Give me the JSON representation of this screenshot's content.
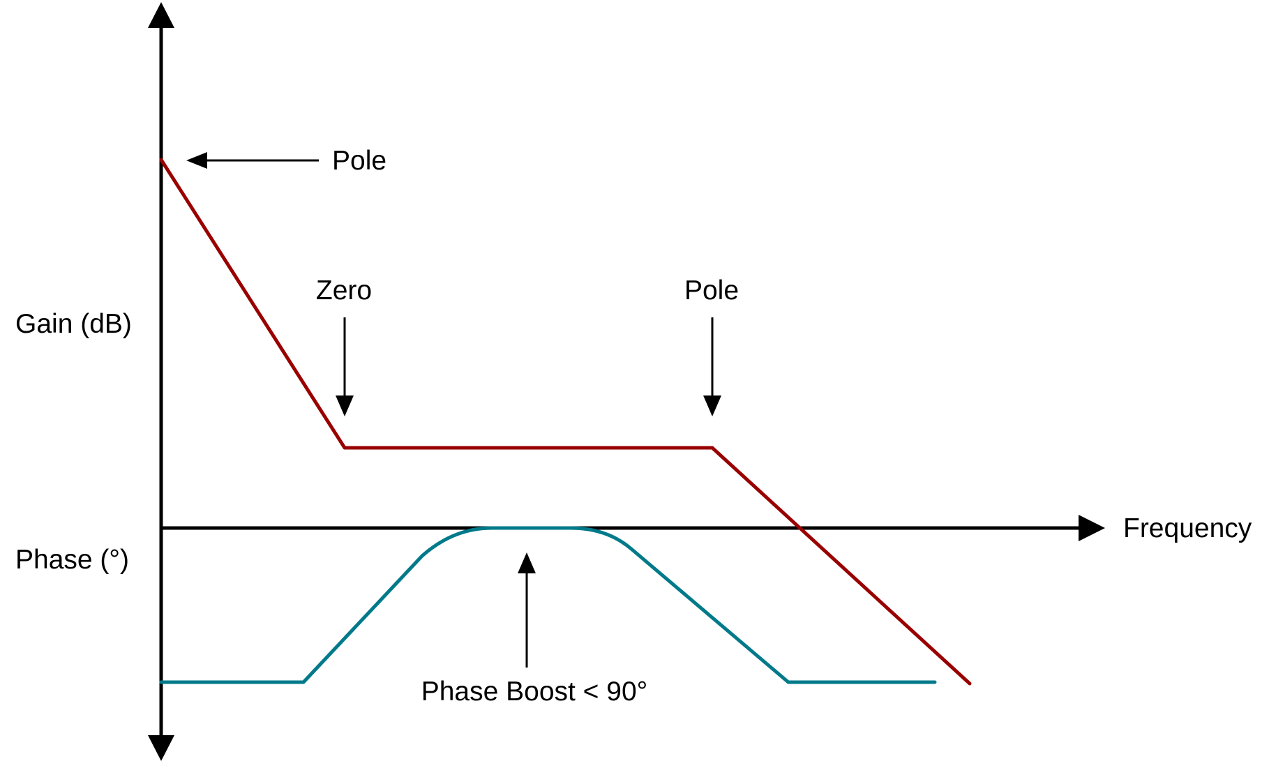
{
  "labels": {
    "gain_axis": "Gain (dB)",
    "phase_axis": "Phase (°)",
    "frequency_axis": "Frequency",
    "pole_top": "Pole",
    "zero": "Zero",
    "pole_mid": "Pole",
    "phase_boost": "Phase Boost < 90°"
  },
  "colors": {
    "axis": "#000000",
    "gain_curve": "#990000",
    "phase_curve": "#007A8A",
    "text": "#000000"
  }
}
